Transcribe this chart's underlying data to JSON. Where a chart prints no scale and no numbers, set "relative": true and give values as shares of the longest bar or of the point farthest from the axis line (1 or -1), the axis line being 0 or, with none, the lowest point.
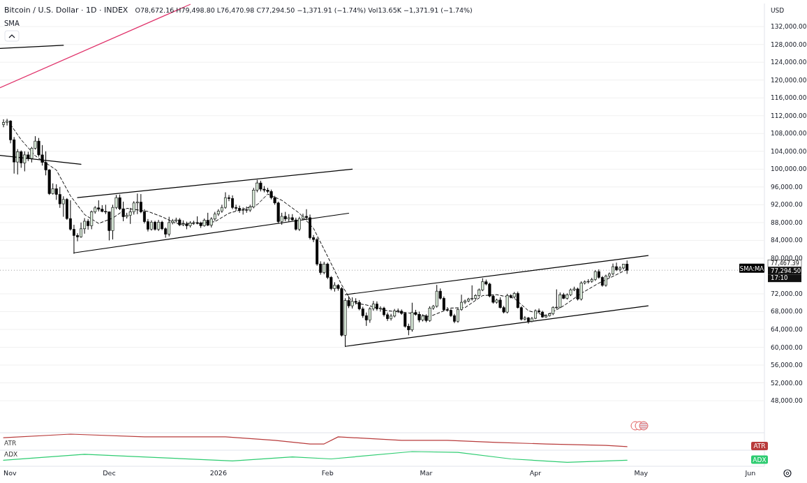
{
  "chart_data": [
    {
      "type": "candlestick",
      "title": "Bitcoin / U.S. Dollar · 1D · INDEX",
      "subtitle": "O78,672.16 H79,498.80 L76,470.98 C77,294.50 −1,371.91 (−1.74%) Vol13.65K −1,371.91 (−1.74%)",
      "ylabel": "USD",
      "color": "#000000",
      "x": [
        "2025-11-01",
        "2025-11-02",
        "2025-11-03",
        "2025-11-04",
        "2025-11-05",
        "2025-11-06",
        "2025-11-07",
        "2025-11-08",
        "2025-11-09",
        "2025-11-10",
        "2025-11-11",
        "2025-11-12",
        "2025-11-13",
        "2025-11-14",
        "2025-11-15",
        "2025-11-16",
        "2025-11-17",
        "2025-11-18",
        "2025-11-19",
        "2025-11-20",
        "2025-11-21",
        "2025-11-22",
        "2025-11-23",
        "2025-11-24",
        "2025-11-25",
        "2025-11-26",
        "2025-11-27",
        "2025-11-28",
        "2025-11-29",
        "2025-11-30",
        "2025-12-01",
        "2025-12-02",
        "2025-12-03",
        "2025-12-04",
        "2025-12-05",
        "2025-12-06",
        "2025-12-07",
        "2025-12-08",
        "2025-12-09",
        "2025-12-10",
        "2025-12-11",
        "2025-12-12",
        "2025-12-13",
        "2025-12-14",
        "2025-12-15",
        "2025-12-16",
        "2025-12-17",
        "2025-12-18",
        "2025-12-19",
        "2025-12-20",
        "2025-12-21",
        "2025-12-22",
        "2025-12-23",
        "2025-12-24",
        "2025-12-25",
        "2025-12-26",
        "2025-12-27",
        "2025-12-28",
        "2025-12-29",
        "2025-12-30",
        "2025-12-31",
        "2026-01-01",
        "2026-01-02",
        "2026-01-03",
        "2026-01-04",
        "2026-01-05",
        "2026-01-06",
        "2026-01-07",
        "2026-01-08",
        "2026-01-09",
        "2026-01-10",
        "2026-01-11",
        "2026-01-12",
        "2026-01-13",
        "2026-01-14",
        "2026-01-15",
        "2026-01-16",
        "2026-01-17",
        "2026-01-18",
        "2026-01-19",
        "2026-01-20",
        "2026-01-21",
        "2026-01-22",
        "2026-01-23",
        "2026-01-24",
        "2026-01-25",
        "2026-01-26",
        "2026-01-27",
        "2026-01-28",
        "2026-01-29",
        "2026-01-30",
        "2026-01-31",
        "2026-02-01",
        "2026-02-02",
        "2026-02-03",
        "2026-02-04",
        "2026-02-05",
        "2026-02-06",
        "2026-02-07",
        "2026-02-08",
        "2026-02-09",
        "2026-02-10",
        "2026-02-11",
        "2026-02-12",
        "2026-02-13",
        "2026-02-14",
        "2026-02-15",
        "2026-02-16",
        "2026-02-17",
        "2026-02-18",
        "2026-02-19",
        "2026-02-20",
        "2026-02-21",
        "2026-02-22",
        "2026-02-23",
        "2026-02-24",
        "2026-02-25",
        "2026-02-26",
        "2026-02-27",
        "2026-02-28",
        "2026-03-01",
        "2026-03-02",
        "2026-03-03",
        "2026-03-04",
        "2026-03-05",
        "2026-03-06",
        "2026-03-07",
        "2026-03-08",
        "2026-03-09",
        "2026-03-10",
        "2026-03-11",
        "2026-03-12",
        "2026-03-13",
        "2026-03-14",
        "2026-03-15",
        "2026-03-16",
        "2026-03-17",
        "2026-03-18",
        "2026-03-19",
        "2026-03-20",
        "2026-03-21",
        "2026-03-22",
        "2026-03-23",
        "2026-03-24",
        "2026-03-25",
        "2026-03-26",
        "2026-03-27",
        "2026-03-28",
        "2026-03-29",
        "2026-03-30",
        "2026-03-31",
        "2026-04-01",
        "2026-04-02",
        "2026-04-03",
        "2026-04-04",
        "2026-04-05",
        "2026-04-06",
        "2026-04-07",
        "2026-04-08",
        "2026-04-09",
        "2026-04-10",
        "2026-04-11",
        "2026-04-12",
        "2026-04-13",
        "2026-04-14",
        "2026-04-15",
        "2026-04-16",
        "2026-04-17",
        "2026-04-18",
        "2026-04-19",
        "2026-04-20",
        "2026-04-21",
        "2026-04-22",
        "2026-04-23",
        "2026-04-24",
        "2026-04-25",
        "2026-04-26",
        "2026-04-27"
      ],
      "ohlc": [
        [
          110000,
          111200,
          109400,
          110500
        ],
        [
          110500,
          111300,
          109800,
          110800
        ],
        [
          110800,
          111000,
          105800,
          106600
        ],
        [
          106600,
          107200,
          99000,
          101600
        ],
        [
          101600,
          104500,
          98800,
          103900
        ],
        [
          103900,
          104200,
          100300,
          101400
        ],
        [
          101400,
          104000,
          99500,
          103200
        ],
        [
          103200,
          103900,
          101800,
          102400
        ],
        [
          102400,
          105000,
          101500,
          104700
        ],
        [
          104700,
          107400,
          104400,
          106300
        ],
        [
          106300,
          107000,
          102800,
          103200
        ],
        [
          103200,
          105400,
          100800,
          101500
        ],
        [
          101500,
          104000,
          98600,
          99800
        ],
        [
          99800,
          100000,
          94200,
          94500
        ],
        [
          94500,
          96800,
          94300,
          95600
        ],
        [
          95600,
          96600,
          93100,
          94300
        ],
        [
          94300,
          96000,
          91300,
          92200
        ],
        [
          92200,
          93900,
          89300,
          93200
        ],
        [
          93200,
          93500,
          88600,
          88900
        ],
        [
          88900,
          93000,
          86200,
          86500
        ],
        [
          86500,
          87500,
          81000,
          85100
        ],
        [
          85100,
          85600,
          83800,
          84800
        ],
        [
          84800,
          88000,
          84600,
          86600
        ],
        [
          86600,
          89000,
          85500,
          88300
        ],
        [
          88300,
          88800,
          86400,
          87300
        ],
        [
          87300,
          90700,
          86500,
          90400
        ],
        [
          90400,
          91700,
          90000,
          91300
        ],
        [
          91300,
          93000,
          90500,
          91000
        ],
        [
          91000,
          91900,
          90300,
          90500
        ],
        [
          90500,
          92000,
          89900,
          90400
        ],
        [
          90400,
          90500,
          84000,
          86200
        ],
        [
          86200,
          92000,
          84200,
          91400
        ],
        [
          91400,
          94200,
          91000,
          93600
        ],
        [
          93600,
          94300,
          90800,
          91100
        ],
        [
          91100,
          92700,
          88300,
          89300
        ],
        [
          89300,
          90200,
          88900,
          89600
        ],
        [
          89600,
          91300,
          87700,
          90400
        ],
        [
          90400,
          92800,
          89800,
          92400
        ],
        [
          92400,
          94500,
          89900,
          92600
        ],
        [
          92600,
          94400,
          90100,
          90400
        ],
        [
          90400,
          91000,
          87800,
          88200
        ],
        [
          88200,
          88800,
          86000,
          86500
        ],
        [
          86500,
          88500,
          86200,
          88100
        ],
        [
          88100,
          88400,
          86200,
          86500
        ],
        [
          86500,
          88600,
          86100,
          88100
        ],
        [
          88100,
          88400,
          86300,
          86600
        ],
        [
          86600,
          86900,
          84600,
          85400
        ],
        [
          85400,
          89300,
          84900,
          88000
        ],
        [
          88000,
          88800,
          87600,
          88400
        ],
        [
          88400,
          89100,
          88000,
          88600
        ],
        [
          88600,
          89000,
          87200,
          87500
        ],
        [
          87500,
          88500,
          87200,
          87700
        ],
        [
          87700,
          88200,
          86500,
          87300
        ],
        [
          87300,
          88300,
          86900,
          87900
        ],
        [
          87900,
          88400,
          87500,
          88000
        ],
        [
          88000,
          89400,
          87600,
          87900
        ],
        [
          87900,
          88200,
          86800,
          87300
        ],
        [
          87300,
          88900,
          87100,
          88500
        ],
        [
          88500,
          90200,
          87200,
          87400
        ],
        [
          87400,
          89200,
          86900,
          88800
        ],
        [
          88800,
          90400,
          88400,
          89900
        ],
        [
          89900,
          91000,
          89500,
          90600
        ],
        [
          90600,
          92000,
          90200,
          91400
        ],
        [
          91400,
          94800,
          91100,
          93600
        ],
        [
          93600,
          94200,
          92800,
          93400
        ],
        [
          93400,
          94100,
          91000,
          91400
        ],
        [
          91400,
          92000,
          90600,
          91200
        ],
        [
          91200,
          91800,
          90200,
          90700
        ],
        [
          90700,
          91400,
          89800,
          90900
        ],
        [
          90900,
          91600,
          90200,
          90800
        ],
        [
          90800,
          92000,
          90400,
          91500
        ],
        [
          91500,
          95800,
          91200,
          95300
        ],
        [
          95300,
          97600,
          94800,
          96900
        ],
        [
          96900,
          97400,
          95000,
          95500
        ],
        [
          95500,
          96200,
          94800,
          95300
        ],
        [
          95300,
          95800,
          94600,
          95000
        ],
        [
          95000,
          95400,
          93200,
          93600
        ],
        [
          93600,
          94000,
          92000,
          92400
        ],
        [
          92400,
          92700,
          87800,
          88200
        ],
        [
          88200,
          90200,
          87500,
          89400
        ],
        [
          89400,
          90400,
          88300,
          88800
        ],
        [
          88800,
          89900,
          88200,
          89100
        ],
        [
          89100,
          89900,
          88400,
          88600
        ],
        [
          88600,
          89100,
          86200,
          86500
        ],
        [
          86500,
          89300,
          86100,
          88900
        ],
        [
          88900,
          90000,
          88500,
          89400
        ],
        [
          89400,
          91000,
          88600,
          89100
        ],
        [
          89100,
          89800,
          84200,
          84600
        ],
        [
          84600,
          85200,
          83600,
          84200
        ],
        [
          84200,
          84600,
          78300,
          78700
        ],
        [
          78700,
          79300,
          76300,
          76800
        ],
        [
          76800,
          79200,
          76400,
          78700
        ],
        [
          78700,
          79000,
          75300,
          75700
        ],
        [
          75700,
          76000,
          72800,
          73200
        ],
        [
          73200,
          74600,
          72500,
          73900
        ],
        [
          73900,
          74200,
          72700,
          73200
        ],
        [
          73200,
          73500,
          62400,
          62700
        ],
        [
          62700,
          71000,
          60100,
          70500
        ],
        [
          70500,
          71500,
          68800,
          69300
        ],
        [
          69300,
          71200,
          68700,
          70300
        ],
        [
          70300,
          71000,
          69600,
          70100
        ],
        [
          70100,
          70600,
          68300,
          68600
        ],
        [
          68600,
          69100,
          66600,
          67100
        ],
        [
          67100,
          67800,
          64800,
          66100
        ],
        [
          66100,
          69000,
          65500,
          68600
        ],
        [
          68600,
          70400,
          68200,
          69700
        ],
        [
          69700,
          70300,
          68200,
          68600
        ],
        [
          68600,
          69200,
          68000,
          68800
        ],
        [
          68800,
          69100,
          66900,
          67300
        ],
        [
          67300,
          67800,
          65900,
          66400
        ],
        [
          66400,
          67500,
          66000,
          67000
        ],
        [
          67000,
          68600,
          66700,
          68200
        ],
        [
          68200,
          68700,
          67700,
          68100
        ],
        [
          68100,
          68500,
          67300,
          67600
        ],
        [
          67600,
          67900,
          64400,
          64700
        ],
        [
          64700,
          65300,
          62700,
          63900
        ],
        [
          63900,
          70000,
          63500,
          67800
        ],
        [
          67800,
          68400,
          67100,
          67400
        ],
        [
          67400,
          68000,
          65600,
          66100
        ],
        [
          66100,
          67400,
          65800,
          67000
        ],
        [
          67000,
          67400,
          65600,
          66000
        ],
        [
          66000,
          69200,
          65700,
          68800
        ],
        [
          68800,
          69500,
          68400,
          69200
        ],
        [
          69200,
          74000,
          68900,
          72600
        ],
        [
          72600,
          73200,
          70700,
          71000
        ],
        [
          71000,
          71400,
          68200,
          68400
        ],
        [
          68400,
          69000,
          68000,
          68300
        ],
        [
          68300,
          68600,
          66800,
          67100
        ],
        [
          67100,
          67500,
          65400,
          65800
        ],
        [
          65800,
          68800,
          65500,
          68500
        ],
        [
          68500,
          71800,
          68200,
          70100
        ],
        [
          70100,
          70700,
          69700,
          70400
        ],
        [
          70400,
          71100,
          70100,
          70800
        ],
        [
          70800,
          73900,
          70500,
          71000
        ],
        [
          71000,
          71900,
          70600,
          71600
        ],
        [
          71600,
          73200,
          71300,
          72900
        ],
        [
          72900,
          75500,
          72600,
          74700
        ],
        [
          74700,
          75200,
          73900,
          74200
        ],
        [
          74200,
          74500,
          71200,
          71500
        ],
        [
          71500,
          71800,
          69800,
          70100
        ],
        [
          70100,
          70900,
          69800,
          70600
        ],
        [
          70600,
          71200,
          68700,
          68900
        ],
        [
          68900,
          69300,
          67600,
          67900
        ],
        [
          67900,
          72000,
          67600,
          71600
        ],
        [
          71600,
          71900,
          71000,
          71300
        ],
        [
          71300,
          72400,
          71000,
          72100
        ],
        [
          72100,
          72500,
          68700,
          68900
        ],
        [
          68900,
          69200,
          66000,
          66300
        ],
        [
          66300,
          67000,
          66000,
          66600
        ],
        [
          66600,
          66800,
          65300,
          65800
        ],
        [
          65800,
          66800,
          65600,
          66500
        ],
        [
          66500,
          68500,
          66300,
          68200
        ],
        [
          68200,
          68700,
          67700,
          67900
        ],
        [
          67900,
          68200,
          66600,
          66800
        ],
        [
          66800,
          67400,
          66600,
          67100
        ],
        [
          67100,
          67700,
          66900,
          67500
        ],
        [
          67500,
          69200,
          67200,
          68900
        ],
        [
          68900,
          73000,
          68600,
          69000
        ],
        [
          69000,
          72300,
          68800,
          71800
        ],
        [
          71800,
          72200,
          70800,
          71000
        ],
        [
          71000,
          72100,
          70700,
          71800
        ],
        [
          71800,
          73200,
          71500,
          72900
        ],
        [
          72900,
          73600,
          72600,
          73100
        ],
        [
          73100,
          73400,
          70500,
          70800
        ],
        [
          70800,
          74800,
          70500,
          74400
        ],
        [
          74400,
          75000,
          74100,
          74700
        ],
        [
          74700,
          75300,
          74300,
          74800
        ],
        [
          74800,
          75600,
          74500,
          75200
        ],
        [
          75200,
          77300,
          74900,
          77000
        ],
        [
          77000,
          77500,
          75400,
          75700
        ],
        [
          75700,
          76000,
          73600,
          73900
        ],
        [
          73900,
          76300,
          73600,
          76000
        ],
        [
          76000,
          76800,
          75600,
          76500
        ],
        [
          76500,
          78800,
          76200,
          78100
        ],
        [
          78100,
          79000,
          77100,
          77400
        ],
        [
          77400,
          78200,
          77000,
          77800
        ],
        [
          77800,
          78700,
          77500,
          78672.16
        ],
        [
          78672.16,
          79498.8,
          76470.98,
          77294.5
        ]
      ],
      "series": [
        {
          "name": "SMA:MA",
          "type": "line",
          "color": "#000000",
          "line_style": "dashed",
          "x": [
            "2025-11-03",
            "2025-11-06",
            "2025-11-10",
            "2025-11-16",
            "2025-11-20",
            "2025-11-24",
            "2025-11-28",
            "2025-12-02",
            "2025-12-06",
            "2025-12-12",
            "2025-12-16",
            "2025-12-20",
            "2025-12-26",
            "2025-12-31",
            "2026-01-04",
            "2026-01-08",
            "2026-01-12",
            "2026-01-15",
            "2026-01-19",
            "2026-01-24",
            "2026-01-28",
            "2026-02-01",
            "2026-02-05",
            "2026-02-08",
            "2026-02-12",
            "2026-02-18",
            "2026-02-24",
            "2026-03-02",
            "2026-03-08",
            "2026-03-12",
            "2026-03-17",
            "2026-03-21",
            "2026-03-26",
            "2026-03-30",
            "2026-04-04",
            "2026-04-09",
            "2026-04-14",
            "2026-04-19",
            "2026-04-24",
            "2026-04-27"
          ],
          "values": [
            110000,
            106600,
            103000,
            99800,
            94000,
            89800,
            87800,
            89000,
            91200,
            90500,
            89300,
            87800,
            87800,
            88200,
            90100,
            91000,
            92000,
            94400,
            93000,
            90100,
            86700,
            80400,
            74000,
            70000,
            69500,
            68200,
            67700,
            66900,
            68800,
            68900,
            71600,
            71800,
            71000,
            68200,
            67100,
            69300,
            72100,
            74400,
            76300,
            77500
          ]
        },
        {
          "type": "line",
          "color": "#e0336b",
          "x": [
            "2025-10-31",
            "2025-12-24"
          ],
          "values": [
            118300,
            137000
          ]
        },
        {
          "type": "line",
          "color": "#000000",
          "x": [
            "2025-10-31",
            "2025-11-18"
          ],
          "values": [
            127100,
            127800
          ]
        },
        {
          "type": "line",
          "color": "#000000",
          "x": [
            "2025-10-31",
            "2025-11-23"
          ],
          "values": [
            103100,
            101100
          ]
        },
        {
          "type": "line",
          "color": "#000000",
          "x": [
            "2025-11-22",
            "2026-02-08"
          ],
          "values": [
            93600,
            100000
          ]
        },
        {
          "type": "line",
          "color": "#000000",
          "x": [
            "2025-11-21",
            "2026-02-07"
          ],
          "values": [
            81200,
            90100
          ]
        },
        {
          "type": "line",
          "color": "#000000",
          "x": [
            "2026-02-06",
            "2026-05-03"
          ],
          "values": [
            71800,
            80600
          ]
        },
        {
          "type": "line",
          "color": "#000000",
          "x": [
            "2026-02-06",
            "2026-05-03"
          ],
          "values": [
            60200,
            69300
          ]
        }
      ],
      "ref_lines": [
        {
          "axis": "y",
          "value": 77294.5,
          "label": "77,294.50",
          "color": "#9e9e9e",
          "line_style": "dotted"
        }
      ],
      "annotations": [
        "SMA",
        "77,467.39",
        "17:10"
      ],
      "xlim": [
        "2025-10-31",
        "2026-06-05"
      ],
      "ylim": [
        40800,
        137200
      ],
      "yticks": [
        {
          "value": 48000,
          "label": "48,000.00"
        },
        {
          "value": 52000,
          "label": "52,000.00"
        },
        {
          "value": 56000,
          "label": "56,000.00"
        },
        {
          "value": 60000,
          "label": "60,000.00"
        },
        {
          "value": 64000,
          "label": "64,000.00"
        },
        {
          "value": 68000,
          "label": "68,000.00"
        },
        {
          "value": 72000,
          "label": "72,000.00"
        },
        {
          "value": 80000,
          "label": "80,000.00"
        },
        {
          "value": 84000,
          "label": "84,000.00"
        },
        {
          "value": 88000,
          "label": "88,000.00"
        },
        {
          "value": 92000,
          "label": "92,000.00"
        },
        {
          "value": 96000,
          "label": "96,000.00"
        },
        {
          "value": 100000,
          "label": "100,000.00"
        },
        {
          "value": 104000,
          "label": "104,000.00"
        },
        {
          "value": 108000,
          "label": "108,000.00"
        },
        {
          "value": 112000,
          "label": "112,000.00"
        },
        {
          "value": 116000,
          "label": "116,000.00"
        },
        {
          "value": 120000,
          "label": "120,000.00"
        },
        {
          "value": 124000,
          "label": "124,000.00"
        },
        {
          "value": 128000,
          "label": "128,000.00"
        },
        {
          "value": 132000,
          "label": "132,000.00"
        }
      ],
      "grid": "y",
      "tick_labels": "y"
    },
    {
      "type": "line",
      "relative": true,
      "tick_labels": false,
      "xlim": [
        "2025-10-31",
        "2026-06-05"
      ],
      "series": [
        {
          "name": "ATR",
          "color": "#b83b3b",
          "x": [
            "2025-11-01",
            "2025-11-20",
            "2025-12-11",
            "2026-01-03",
            "2026-01-17",
            "2026-01-27",
            "2026-01-31",
            "2026-02-04",
            "2026-02-22",
            "2026-03-07",
            "2026-03-21",
            "2026-04-04",
            "2026-04-21",
            "2026-04-27"
          ],
          "values": [
            0.78,
            1,
            0.83,
            0.83,
            0.61,
            0.39,
            0.39,
            0.83,
            0.61,
            0.61,
            0.48,
            0.39,
            0.3,
            0.22
          ]
        }
      ]
    },
    {
      "type": "line",
      "relative": true,
      "tick_labels": "x",
      "xlim": [
        "2025-10-31",
        "2026-06-05"
      ],
      "xticks": [
        {
          "value": "2025-11-01",
          "label": "Nov"
        },
        {
          "value": "2025-12-01",
          "label": "Dec"
        },
        {
          "value": "2026-01-01",
          "label": "2026"
        },
        {
          "value": "2026-02-01",
          "label": "Feb"
        },
        {
          "value": "2026-03-01",
          "label": "Mar"
        },
        {
          "value": "2026-04-01",
          "label": "Apr"
        },
        {
          "value": "2026-05-01",
          "label": "May"
        },
        {
          "value": "2026-06-01",
          "label": "Jun"
        }
      ],
      "series": [
        {
          "name": "ADX",
          "color": "#2ecc71",
          "x": [
            "2025-11-01",
            "2025-11-24",
            "2025-12-15",
            "2026-01-05",
            "2026-01-22",
            "2026-02-02",
            "2026-02-25",
            "2026-03-10",
            "2026-03-25",
            "2026-04-10",
            "2026-04-27"
          ],
          "values": [
            0.41,
            0.82,
            0.59,
            0.36,
            0.64,
            0.5,
            1,
            0.95,
            0.5,
            0.27,
            0.41
          ]
        }
      ]
    }
  ]
}
